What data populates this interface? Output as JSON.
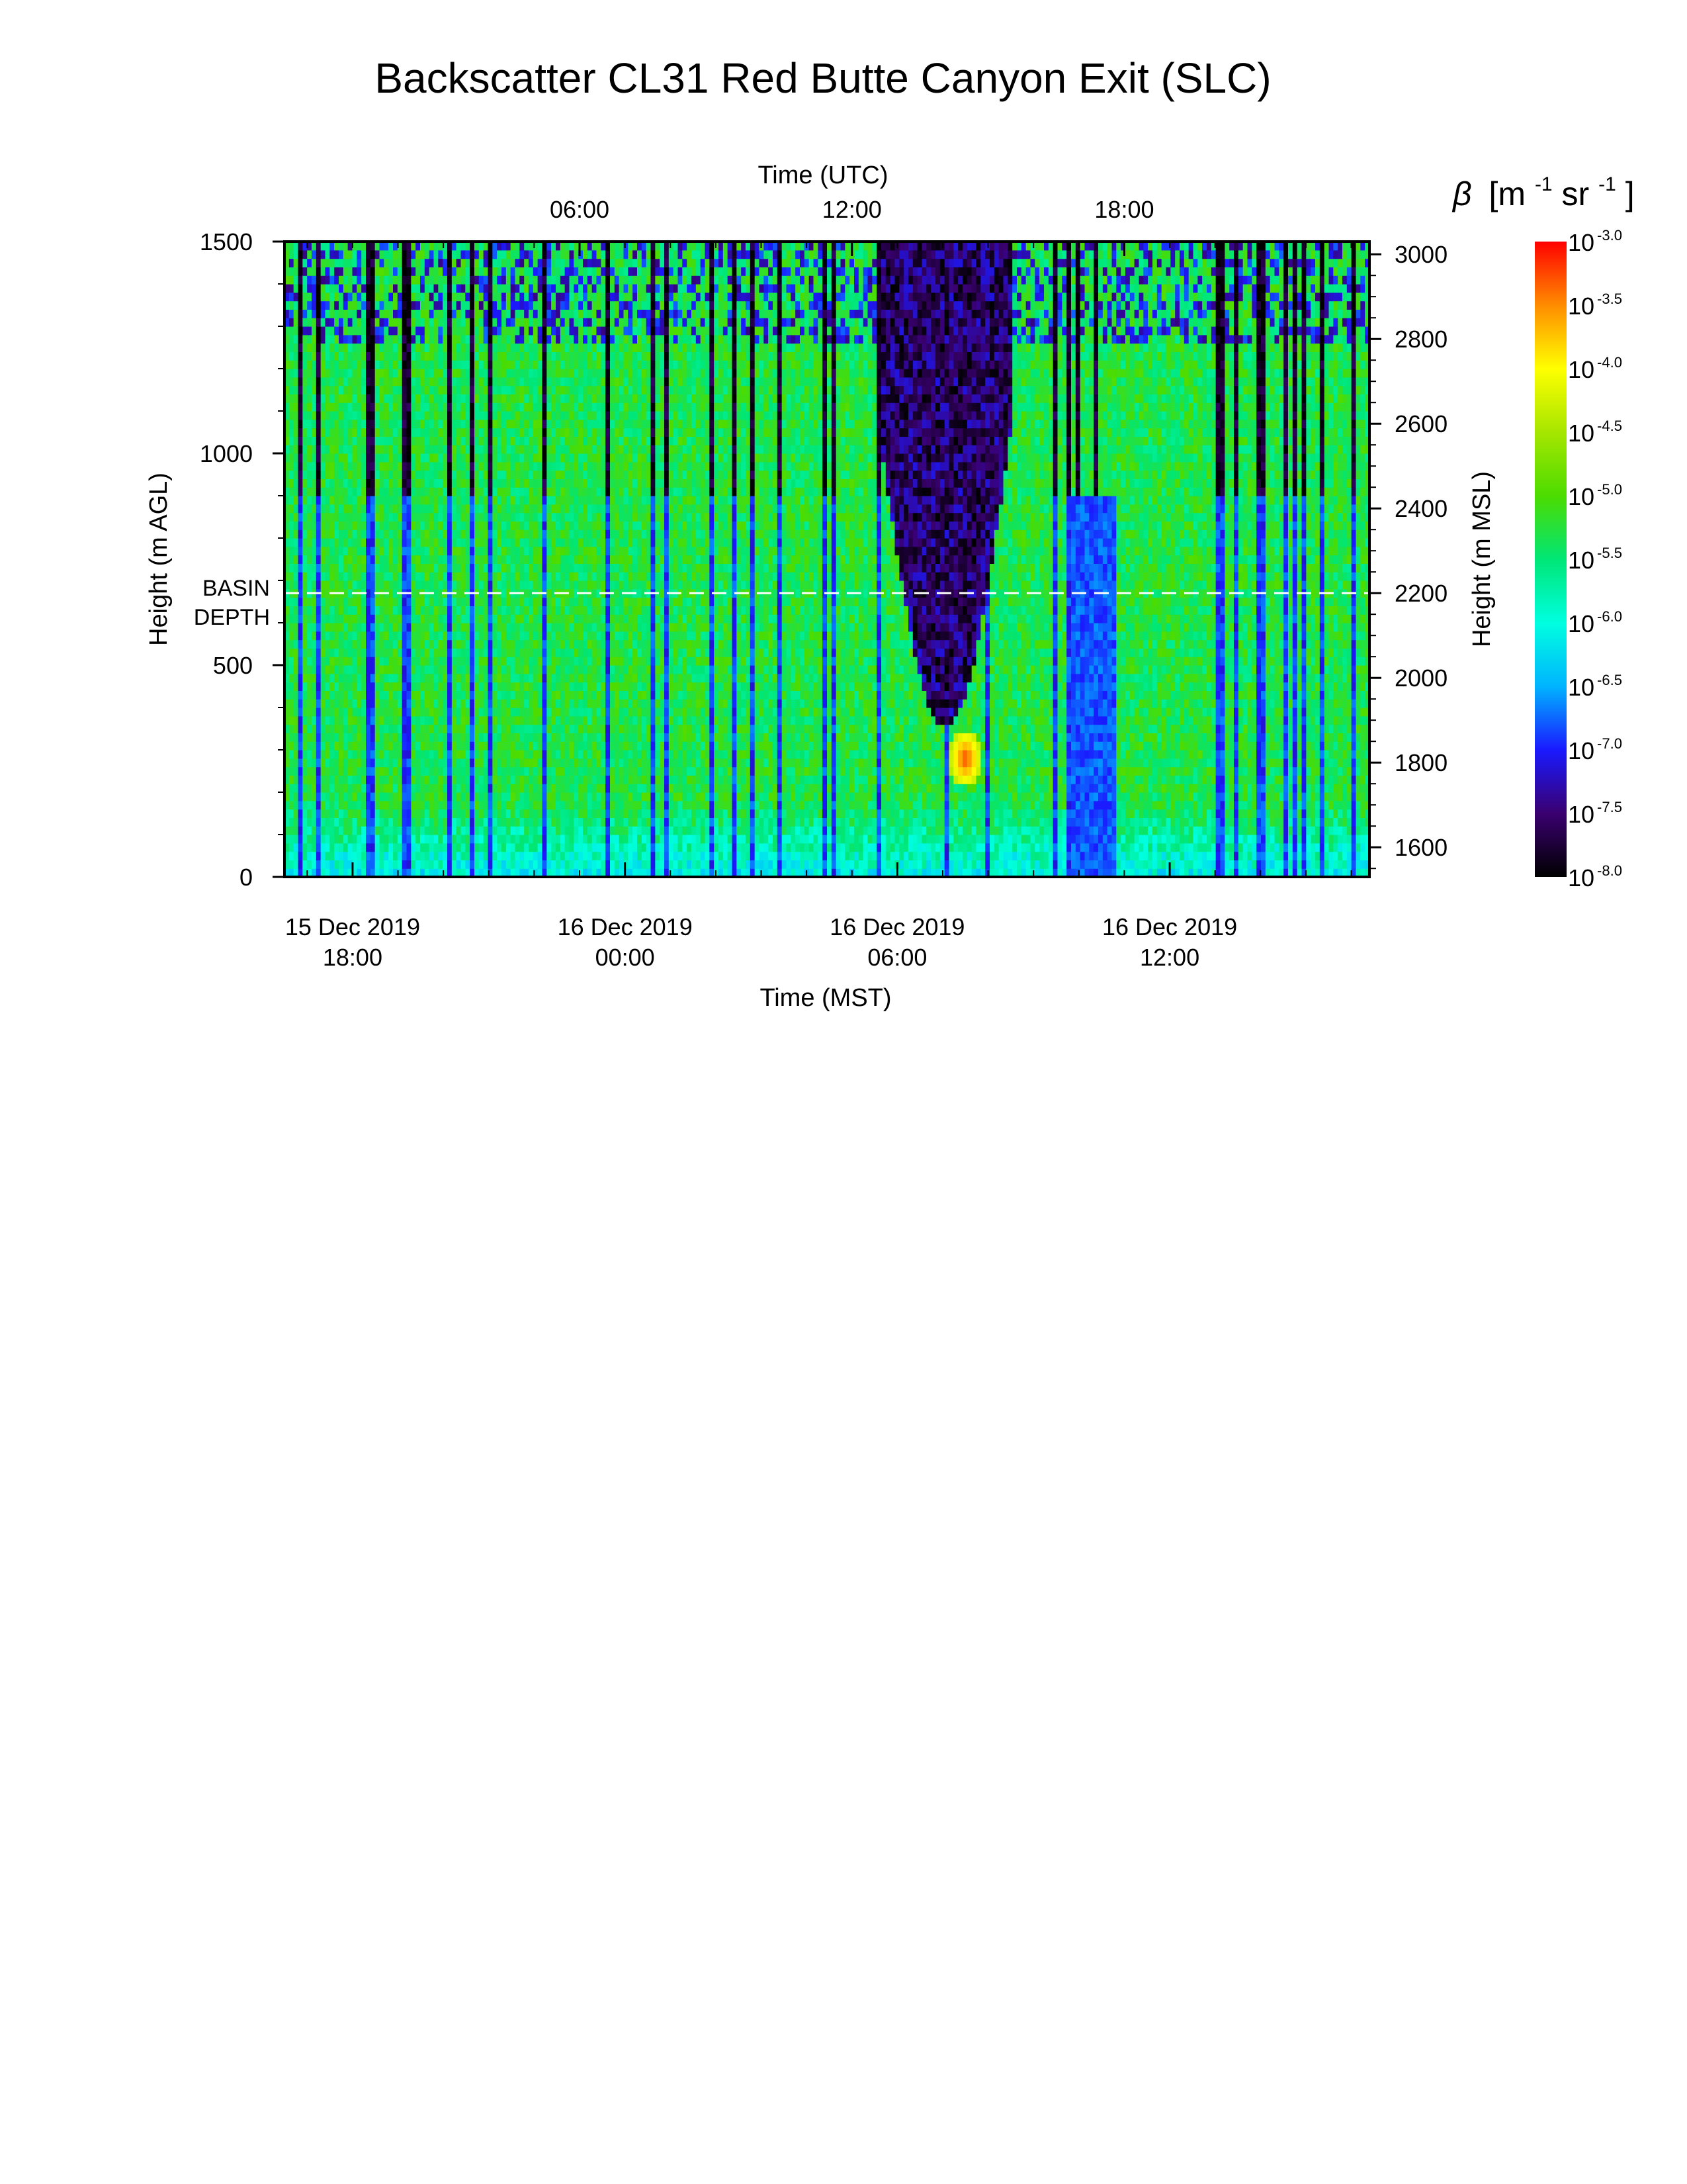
{
  "chart_data": {
    "type": "heatmap",
    "title": "Backscatter CL31 Red Butte Canyon Exit (SLC)",
    "x_bottom": {
      "label": "Time (MST)",
      "range_hours": [
        -6.5,
        17.4
      ],
      "ticks": [
        {
          "hour": -5,
          "date": "15 Dec 2019",
          "time": "18:00"
        },
        {
          "hour": 1,
          "date": "16 Dec 2019",
          "time": "00:00"
        },
        {
          "hour": 7,
          "date": "16 Dec 2019",
          "time": "06:00"
        },
        {
          "hour": 13,
          "date": "16 Dec 2019",
          "time": "12:00"
        }
      ]
    },
    "x_top": {
      "label": "Time (UTC)",
      "ticks": [
        {
          "hour": 0,
          "label": "06:00"
        },
        {
          "hour": 6,
          "label": "12:00"
        },
        {
          "hour": 12,
          "label": "18:00"
        }
      ]
    },
    "y_left": {
      "label": "Height (m AGL)",
      "range": [
        0,
        1500
      ],
      "ticks": [
        0,
        500,
        1000,
        1500
      ]
    },
    "y_right": {
      "label": "Height (m MSL)",
      "range": [
        1530,
        3030
      ],
      "ticks": [
        1600,
        1800,
        2000,
        2200,
        2400,
        2600,
        2800,
        3000
      ]
    },
    "basin_depth": {
      "label_line1": "BASIN",
      "label_line2": "DEPTH",
      "height_m_agl": 670,
      "color": "#ffffff"
    },
    "colorbar": {
      "label_symbol": "β",
      "label_units": "[m",
      "label_exp1": "-1",
      "label_mid": " sr",
      "label_exp2": "-1",
      "label_close": "]",
      "base": "10",
      "exponents": [
        "-3.0",
        "-3.5",
        "-4.0",
        "-4.5",
        "-5.0",
        "-5.5",
        "-6.0",
        "-6.5",
        "-7.0",
        "-7.5",
        "-8.0"
      ],
      "min_log": -8.0,
      "max_log": -3.0,
      "colormap": [
        "#000000",
        "#3a0070",
        "#1a1aff",
        "#00b4ff",
        "#00ffe0",
        "#00e676",
        "#4cdc00",
        "#a6e600",
        "#ffff00",
        "#ff8c00",
        "#ff0000"
      ]
    },
    "features": [
      {
        "desc": "clear-air gap",
        "hour_start": 6.6,
        "hour_end": 9.5,
        "top_m": 1500,
        "bottom_m": 350,
        "log_beta": -8.0
      },
      {
        "desc": "aerosol plume",
        "hour": 8.5,
        "height_m": 280,
        "log_beta": -3.2
      }
    ]
  }
}
